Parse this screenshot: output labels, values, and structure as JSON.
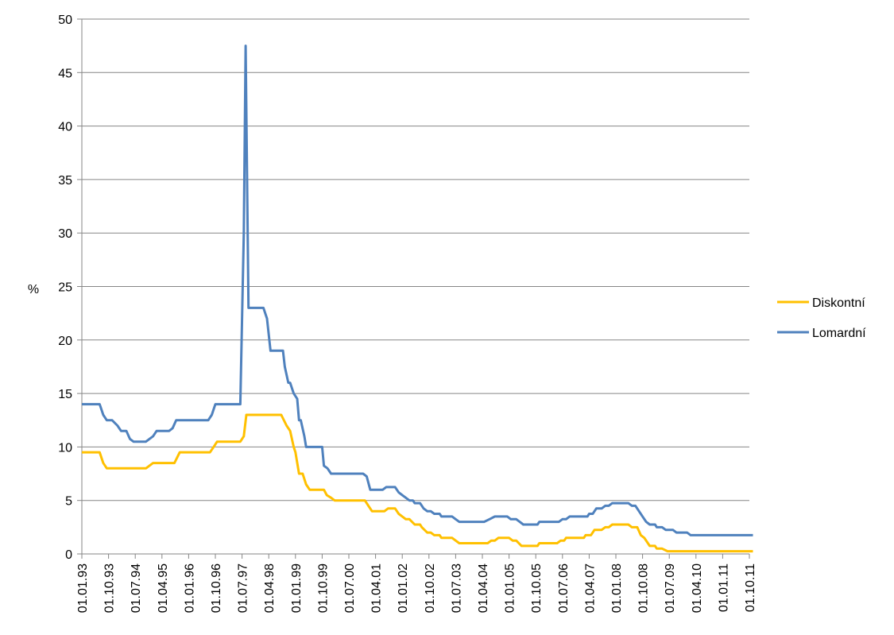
{
  "chart_data": {
    "type": "line",
    "title": "",
    "xlabel": "",
    "ylabel": "%",
    "ylim": [
      0,
      50
    ],
    "yticks": [
      "0",
      "5",
      "10",
      "15",
      "20",
      "25",
      "30",
      "35",
      "40",
      "45",
      "50"
    ],
    "x_tick_labels": [
      "01.01.93",
      "01.10.93",
      "01.07.94",
      "01.04.95",
      "01.01.96",
      "01.10.96",
      "01.07.97",
      "01.04.98",
      "01.01.99",
      "01.10.99",
      "01.07.00",
      "01.04.01",
      "01.01.02",
      "01.10.02",
      "01.07.03",
      "01.04.04",
      "01.01.05",
      "01.10.05",
      "01.07.06",
      "01.04.07",
      "01.01.08",
      "01.10.08",
      "01.07.09",
      "01.04.10",
      "01.01.11",
      "01.10.11"
    ],
    "grid": "horizontal",
    "legend_position": "right",
    "series": [
      {
        "name": "Diskontní",
        "color": "#FFC000",
        "points": [
          [
            1993.0,
            9.5
          ],
          [
            1993.5,
            9.5
          ],
          [
            1993.6,
            8.5
          ],
          [
            1993.7,
            8.0
          ],
          [
            1994.0,
            8.0
          ],
          [
            1994.3,
            8.0
          ],
          [
            1994.6,
            8.0
          ],
          [
            1994.8,
            8.0
          ],
          [
            1995.0,
            8.5
          ],
          [
            1995.4,
            8.5
          ],
          [
            1995.6,
            8.5
          ],
          [
            1995.75,
            9.5
          ],
          [
            1996.0,
            9.5
          ],
          [
            1996.3,
            9.5
          ],
          [
            1996.6,
            9.5
          ],
          [
            1996.7,
            10.0
          ],
          [
            1996.8,
            10.5
          ],
          [
            1997.0,
            10.5
          ],
          [
            1997.2,
            10.5
          ],
          [
            1997.45,
            10.5
          ],
          [
            1997.55,
            11.0
          ],
          [
            1997.62,
            13.0
          ],
          [
            1997.8,
            13.0
          ],
          [
            1998.0,
            13.0
          ],
          [
            1998.3,
            13.0
          ],
          [
            1998.6,
            13.0
          ],
          [
            1998.75,
            12.0
          ],
          [
            1998.85,
            11.5
          ],
          [
            1998.95,
            10.0
          ],
          [
            1999.0,
            9.5
          ],
          [
            1999.1,
            7.5
          ],
          [
            1999.2,
            7.5
          ],
          [
            1999.3,
            6.5
          ],
          [
            1999.4,
            6.0
          ],
          [
            1999.6,
            6.0
          ],
          [
            1999.8,
            6.0
          ],
          [
            1999.88,
            5.5
          ],
          [
            2000.0,
            5.25
          ],
          [
            2000.1,
            5.0
          ],
          [
            2000.3,
            5.0
          ],
          [
            2000.6,
            5.0
          ],
          [
            2000.8,
            5.0
          ],
          [
            2000.95,
            5.0
          ],
          [
            2001.05,
            4.5
          ],
          [
            2001.15,
            4.0
          ],
          [
            2001.3,
            4.0
          ],
          [
            2001.5,
            4.0
          ],
          [
            2001.6,
            4.25
          ],
          [
            2001.8,
            4.25
          ],
          [
            2001.9,
            3.75
          ],
          [
            2002.0,
            3.5
          ],
          [
            2002.1,
            3.25
          ],
          [
            2002.2,
            3.25
          ],
          [
            2002.35,
            2.75
          ],
          [
            2002.5,
            2.75
          ],
          [
            2002.55,
            2.5
          ],
          [
            2002.7,
            2.0
          ],
          [
            2002.8,
            2.0
          ],
          [
            2002.9,
            1.75
          ],
          [
            2003.05,
            1.75
          ],
          [
            2003.1,
            1.5
          ],
          [
            2003.2,
            1.5
          ],
          [
            2003.4,
            1.5
          ],
          [
            2003.5,
            1.25
          ],
          [
            2003.6,
            1.0
          ],
          [
            2003.8,
            1.0
          ],
          [
            2004.0,
            1.0
          ],
          [
            2004.2,
            1.0
          ],
          [
            2004.4,
            1.0
          ],
          [
            2004.5,
            1.25
          ],
          [
            2004.6,
            1.25
          ],
          [
            2004.7,
            1.5
          ],
          [
            2004.9,
            1.5
          ],
          [
            2005.0,
            1.5
          ],
          [
            2005.1,
            1.25
          ],
          [
            2005.2,
            1.25
          ],
          [
            2005.35,
            0.75
          ],
          [
            2005.5,
            0.75
          ],
          [
            2005.7,
            0.75
          ],
          [
            2005.8,
            0.75
          ],
          [
            2005.85,
            1.0
          ],
          [
            2006.0,
            1.0
          ],
          [
            2006.2,
            1.0
          ],
          [
            2006.35,
            1.0
          ],
          [
            2006.45,
            1.25
          ],
          [
            2006.55,
            1.25
          ],
          [
            2006.6,
            1.5
          ],
          [
            2006.8,
            1.5
          ],
          [
            2007.0,
            1.5
          ],
          [
            2007.1,
            1.5
          ],
          [
            2007.15,
            1.75
          ],
          [
            2007.3,
            1.75
          ],
          [
            2007.4,
            2.25
          ],
          [
            2007.6,
            2.25
          ],
          [
            2007.7,
            2.5
          ],
          [
            2007.8,
            2.5
          ],
          [
            2007.9,
            2.75
          ],
          [
            2008.0,
            2.75
          ],
          [
            2008.2,
            2.75
          ],
          [
            2008.35,
            2.75
          ],
          [
            2008.45,
            2.5
          ],
          [
            2008.6,
            2.5
          ],
          [
            2008.7,
            1.75
          ],
          [
            2008.8,
            1.5
          ],
          [
            2008.9,
            1.0
          ],
          [
            2008.95,
            0.75
          ],
          [
            2009.1,
            0.75
          ],
          [
            2009.15,
            0.5
          ],
          [
            2009.3,
            0.5
          ],
          [
            2009.45,
            0.25
          ],
          [
            2009.6,
            0.25
          ],
          [
            2010.0,
            0.25
          ],
          [
            2010.4,
            0.25
          ],
          [
            2010.8,
            0.25
          ],
          [
            2011.2,
            0.25
          ],
          [
            2011.6,
            0.25
          ],
          [
            2011.85,
            0.25
          ]
        ]
      },
      {
        "name": "Lomardní",
        "color": "#4F81BD",
        "points": [
          [
            1993.0,
            14.0
          ],
          [
            1993.3,
            14.0
          ],
          [
            1993.5,
            14.0
          ],
          [
            1993.6,
            13.0
          ],
          [
            1993.7,
            12.5
          ],
          [
            1993.85,
            12.5
          ],
          [
            1994.0,
            12.0
          ],
          [
            1994.1,
            11.5
          ],
          [
            1994.25,
            11.5
          ],
          [
            1994.35,
            10.75
          ],
          [
            1994.45,
            10.5
          ],
          [
            1994.6,
            10.5
          ],
          [
            1994.8,
            10.5
          ],
          [
            1995.0,
            11.0
          ],
          [
            1995.1,
            11.5
          ],
          [
            1995.3,
            11.5
          ],
          [
            1995.45,
            11.5
          ],
          [
            1995.55,
            11.75
          ],
          [
            1995.65,
            12.5
          ],
          [
            1995.8,
            12.5
          ],
          [
            1996.0,
            12.5
          ],
          [
            1996.3,
            12.5
          ],
          [
            1996.55,
            12.5
          ],
          [
            1996.65,
            13.0
          ],
          [
            1996.75,
            14.0
          ],
          [
            1996.9,
            14.0
          ],
          [
            1997.2,
            14.0
          ],
          [
            1997.45,
            14.0
          ],
          [
            1997.55,
            30.0
          ],
          [
            1997.6,
            47.5
          ],
          [
            1997.68,
            23.0
          ],
          [
            1997.75,
            23.0
          ],
          [
            1998.0,
            23.0
          ],
          [
            1998.1,
            23.0
          ],
          [
            1998.2,
            22.0
          ],
          [
            1998.3,
            19.0
          ],
          [
            1998.5,
            19.0
          ],
          [
            1998.65,
            19.0
          ],
          [
            1998.7,
            17.5
          ],
          [
            1998.8,
            16.0
          ],
          [
            1998.85,
            16.0
          ],
          [
            1998.95,
            15.0
          ],
          [
            1999.05,
            14.5
          ],
          [
            1999.1,
            12.5
          ],
          [
            1999.15,
            12.5
          ],
          [
            1999.25,
            11.0
          ],
          [
            1999.3,
            10.0
          ],
          [
            1999.45,
            10.0
          ],
          [
            1999.6,
            10.0
          ],
          [
            1999.75,
            10.0
          ],
          [
            1999.8,
            8.25
          ],
          [
            1999.9,
            8.0
          ],
          [
            2000.0,
            7.5
          ],
          [
            2000.3,
            7.5
          ],
          [
            2000.6,
            7.5
          ],
          [
            2000.9,
            7.5
          ],
          [
            2001.0,
            7.25
          ],
          [
            2001.1,
            6.0
          ],
          [
            2001.3,
            6.0
          ],
          [
            2001.45,
            6.0
          ],
          [
            2001.55,
            6.25
          ],
          [
            2001.8,
            6.25
          ],
          [
            2001.9,
            5.75
          ],
          [
            2002.0,
            5.5
          ],
          [
            2002.1,
            5.25
          ],
          [
            2002.2,
            5.0
          ],
          [
            2002.3,
            5.0
          ],
          [
            2002.35,
            4.75
          ],
          [
            2002.5,
            4.75
          ],
          [
            2002.6,
            4.25
          ],
          [
            2002.7,
            4.0
          ],
          [
            2002.8,
            4.0
          ],
          [
            2002.9,
            3.75
          ],
          [
            2003.05,
            3.75
          ],
          [
            2003.1,
            3.5
          ],
          [
            2003.2,
            3.5
          ],
          [
            2003.4,
            3.5
          ],
          [
            2003.5,
            3.25
          ],
          [
            2003.6,
            3.0
          ],
          [
            2003.8,
            3.0
          ],
          [
            2004.0,
            3.0
          ],
          [
            2004.3,
            3.0
          ],
          [
            2004.45,
            3.25
          ],
          [
            2004.6,
            3.5
          ],
          [
            2004.8,
            3.5
          ],
          [
            2004.95,
            3.5
          ],
          [
            2005.05,
            3.25
          ],
          [
            2005.2,
            3.25
          ],
          [
            2005.3,
            3.0
          ],
          [
            2005.4,
            2.75
          ],
          [
            2005.6,
            2.75
          ],
          [
            2005.8,
            2.75
          ],
          [
            2005.85,
            3.0
          ],
          [
            2006.0,
            3.0
          ],
          [
            2006.2,
            3.0
          ],
          [
            2006.4,
            3.0
          ],
          [
            2006.5,
            3.25
          ],
          [
            2006.6,
            3.25
          ],
          [
            2006.7,
            3.5
          ],
          [
            2006.9,
            3.5
          ],
          [
            2007.1,
            3.5
          ],
          [
            2007.2,
            3.5
          ],
          [
            2007.25,
            3.75
          ],
          [
            2007.35,
            3.75
          ],
          [
            2007.45,
            4.25
          ],
          [
            2007.6,
            4.25
          ],
          [
            2007.7,
            4.5
          ],
          [
            2007.8,
            4.5
          ],
          [
            2007.9,
            4.75
          ],
          [
            2008.0,
            4.75
          ],
          [
            2008.2,
            4.75
          ],
          [
            2008.35,
            4.75
          ],
          [
            2008.45,
            4.5
          ],
          [
            2008.55,
            4.5
          ],
          [
            2008.65,
            4.0
          ],
          [
            2008.75,
            3.5
          ],
          [
            2008.85,
            3.0
          ],
          [
            2008.95,
            2.75
          ],
          [
            2009.1,
            2.75
          ],
          [
            2009.15,
            2.5
          ],
          [
            2009.3,
            2.5
          ],
          [
            2009.4,
            2.25
          ],
          [
            2009.6,
            2.25
          ],
          [
            2009.7,
            2.0
          ],
          [
            2010.0,
            2.0
          ],
          [
            2010.1,
            1.75
          ],
          [
            2010.4,
            1.75
          ],
          [
            2010.8,
            1.75
          ],
          [
            2011.2,
            1.75
          ],
          [
            2011.6,
            1.75
          ],
          [
            2011.85,
            1.75
          ]
        ]
      }
    ]
  }
}
